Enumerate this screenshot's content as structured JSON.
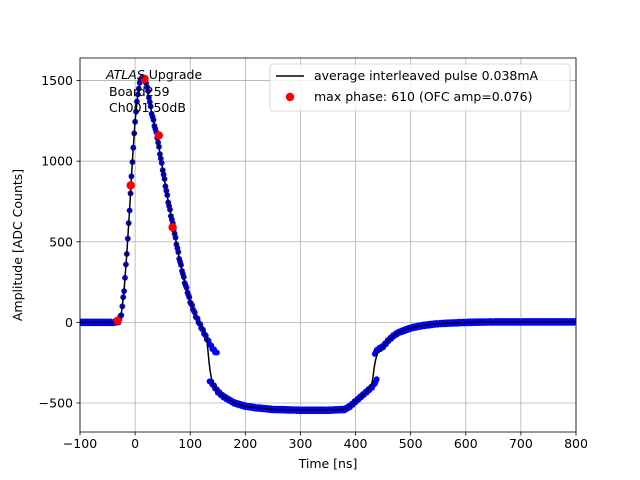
{
  "chart_data": {
    "type": "line",
    "title": "",
    "xlabel": "Time [ns]",
    "ylabel": "Amplitude [ADC Counts]",
    "xlim": [
      -100,
      800
    ],
    "ylim": [
      -680,
      1640
    ],
    "grid": true,
    "x_ticks": [
      -100,
      0,
      100,
      200,
      300,
      400,
      500,
      600,
      700,
      800
    ],
    "x_tick_labels": [
      "−100",
      "0",
      "100",
      "200",
      "300",
      "400",
      "500",
      "600",
      "700",
      "800"
    ],
    "y_ticks": [
      -500,
      0,
      500,
      1000,
      1500
    ],
    "y_tick_labels": [
      "−500",
      "0",
      "500",
      "1000",
      "1500"
    ],
    "annotation": {
      "line1_italic": "ATLAS",
      "line1_rest": " Upgrade",
      "line2": "Board259",
      "line3": "Ch001 50dB"
    },
    "legend": {
      "placement": "top-right",
      "entries": [
        {
          "label": "average interleaved pulse 0.038mA",
          "marker": "line",
          "color": "#000000"
        },
        {
          "label": "max phase: 610 (OFC amp=0.076)",
          "marker": "circle",
          "color": "#ff0000"
        }
      ]
    },
    "series": [
      {
        "name": "average interleaved pulse 0.038mA",
        "color": "#000000",
        "x": [
          -100,
          -40,
          -30,
          -25,
          -20,
          -15,
          -10,
          -5,
          0,
          5,
          10,
          15,
          20,
          25,
          30,
          40,
          50,
          60,
          70,
          80,
          90,
          100,
          110,
          120,
          130,
          135,
          140,
          150,
          160,
          170,
          180,
          200,
          220,
          250,
          300,
          350,
          380,
          390,
          400,
          410,
          420,
          430,
          435,
          440,
          450,
          460,
          470,
          480,
          500,
          520,
          550,
          600,
          650,
          700,
          800
        ],
        "y": [
          0,
          0,
          5,
          50,
          200,
          430,
          700,
          1000,
          1250,
          1420,
          1510,
          1520,
          1490,
          1400,
          1300,
          1150,
          950,
          750,
          580,
          400,
          250,
          130,
          40,
          -30,
          -100,
          -280,
          -380,
          -430,
          -460,
          -480,
          -500,
          -520,
          -530,
          -540,
          -545,
          -545,
          -540,
          -520,
          -490,
          -460,
          -430,
          -380,
          -250,
          -190,
          -150,
          -110,
          -80,
          -60,
          -35,
          -20,
          -8,
          0,
          3,
          3,
          3
        ]
      },
      {
        "name": "",
        "color": "#0000ff",
        "marker": "circle",
        "x": [
          -100,
          -40,
          -30,
          -25,
          -20,
          -15,
          -10,
          -5,
          0,
          5,
          10,
          15,
          20,
          25,
          30,
          40,
          50,
          60,
          70,
          80,
          90,
          100,
          110,
          120,
          130,
          140,
          150,
          135,
          140,
          150,
          160,
          170,
          180,
          200,
          220,
          250,
          300,
          350,
          380,
          390,
          400,
          410,
          420,
          430,
          440,
          435,
          440,
          450,
          460,
          470,
          480,
          500,
          520,
          550,
          600,
          650,
          700,
          800
        ],
        "y": [
          0,
          0,
          5,
          50,
          200,
          430,
          700,
          1000,
          1250,
          1420,
          1510,
          1520,
          1490,
          1400,
          1300,
          1150,
          950,
          750,
          580,
          400,
          250,
          130,
          40,
          -30,
          -100,
          -160,
          -200,
          -360,
          -380,
          -430,
          -460,
          -480,
          -500,
          -520,
          -530,
          -540,
          -545,
          -545,
          -540,
          -520,
          -490,
          -460,
          -430,
          -400,
          -350,
          -190,
          -170,
          -150,
          -110,
          -80,
          -60,
          -35,
          -20,
          -8,
          0,
          3,
          3,
          3
        ]
      },
      {
        "name": "max phase: 610 (OFC amp=0.076)",
        "color": "#ff0000",
        "marker": "circle",
        "x": [
          -32,
          -8,
          17,
          43,
          68
        ],
        "y": [
          10,
          850,
          1510,
          1160,
          590
        ]
      }
    ]
  }
}
